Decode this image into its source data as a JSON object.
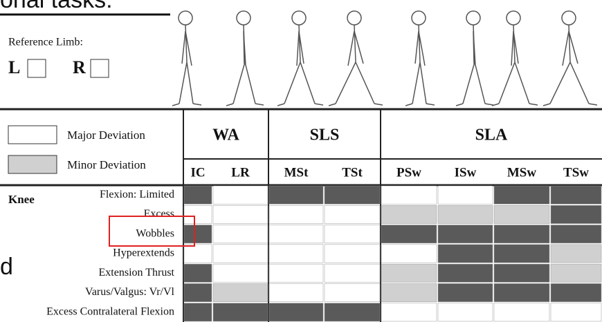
{
  "header": {
    "title": "onal tasks:",
    "stray_text": "d"
  },
  "reference_limb": {
    "label": "Reference Limb:",
    "left": "L",
    "right": "R"
  },
  "legend": {
    "major": "Major Deviation",
    "minor": "Minor Deviation"
  },
  "table": {
    "groups": [
      {
        "label": "WA",
        "phases": [
          "IC",
          "LR"
        ]
      },
      {
        "label": "SLS",
        "phases": [
          "MSt",
          "TSt"
        ]
      },
      {
        "label": "SLA",
        "phases": [
          "PSw",
          "ISw",
          "MSw",
          "TSw"
        ]
      }
    ],
    "joint": "Knee",
    "rows": [
      "Flexion: Limited",
      "Excess",
      "Wobbles",
      "Hyperextends",
      "Extension Thrust",
      "Varus/Valgus: Vr/Vl",
      "Excess Contralateral Flexion"
    ]
  }
}
